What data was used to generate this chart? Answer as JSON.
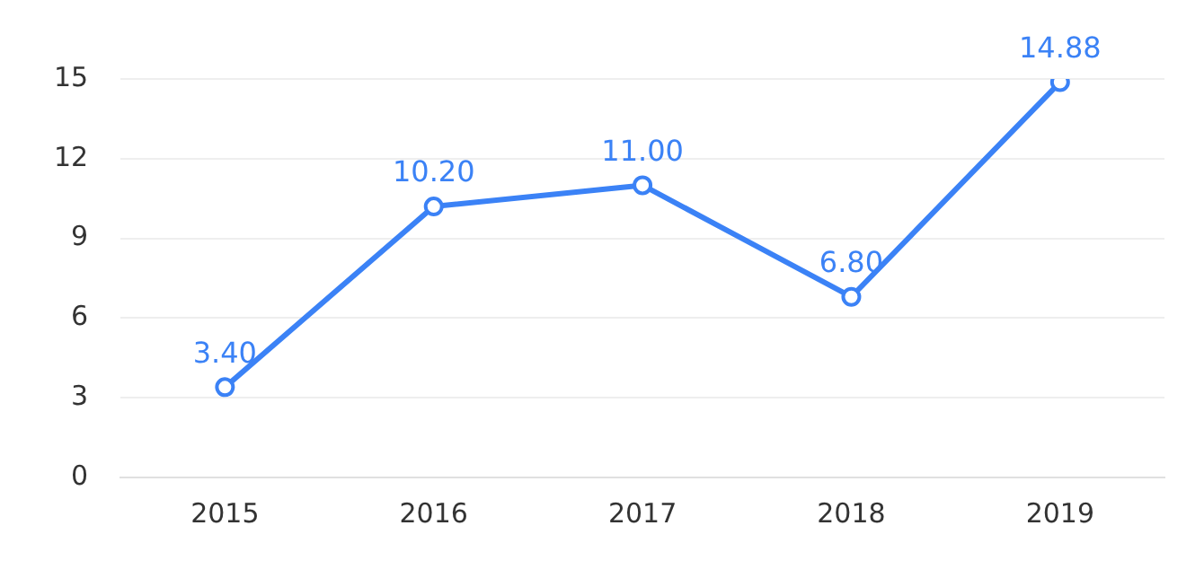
{
  "chart_data": {
    "type": "line",
    "categories": [
      "2015",
      "2016",
      "2017",
      "2018",
      "2019"
    ],
    "series": [
      {
        "color": "#3b82f6",
        "values": [
          3.4,
          10.2,
          11.0,
          6.8,
          14.88
        ]
      }
    ],
    "value_labels": [
      "3.40",
      "10.20",
      "11.00",
      "6.80",
      "14.88"
    ],
    "ylim": [
      0,
      15
    ],
    "yticks": [
      0,
      3,
      6,
      9,
      12,
      15
    ],
    "grid": "y",
    "marker": "circle",
    "line_style": "solid",
    "legend": false
  }
}
